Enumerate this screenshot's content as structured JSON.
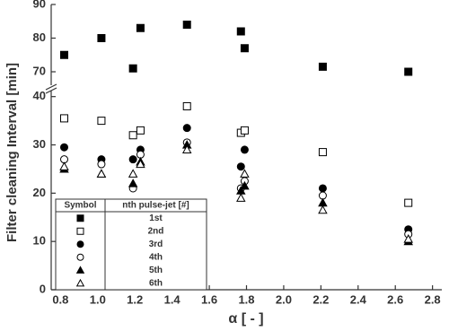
{
  "chart_data": {
    "type": "scatter",
    "x_label": "α [ - ]",
    "y_label": "Filter cleaning Interval [min]",
    "x": [
      0.82,
      1.02,
      1.19,
      1.23,
      1.48,
      1.77,
      1.79,
      2.21,
      2.67
    ],
    "xlim": [
      0.75,
      2.85
    ],
    "xticks": [
      0.8,
      {
        "value": 1.0,
        "label": "1.0"
      },
      1.2,
      1.4,
      1.6,
      1.8,
      {
        "value": 2.0,
        "label": "2.0"
      },
      2.2,
      2.4,
      2.6,
      2.8
    ],
    "y_segments": [
      {
        "ylim": [
          0,
          40.5
        ],
        "yticks": [
          0,
          10,
          20,
          30,
          40
        ]
      },
      {
        "ylim": [
          66,
          90
        ],
        "yticks": [
          70,
          80,
          90
        ]
      }
    ],
    "legend_header": [
      "Symbol",
      "nth pulse-jet [#]"
    ],
    "series": [
      {
        "name": "1st",
        "marker": "square",
        "filled": true,
        "color": "#000000",
        "values": [
          75,
          80,
          71,
          83,
          84,
          82,
          77,
          71.5,
          70
        ]
      },
      {
        "name": "2nd",
        "marker": "square",
        "filled": false,
        "color": "#000000",
        "values": [
          35.5,
          35,
          32,
          33,
          38,
          32.5,
          33,
          28.5,
          18
        ]
      },
      {
        "name": "3rd",
        "marker": "circle",
        "filled": true,
        "color": "#000000",
        "values": [
          29.5,
          27,
          27,
          29,
          33.5,
          25.5,
          29,
          21,
          12.5
        ]
      },
      {
        "name": "4th",
        "marker": "circle",
        "filled": false,
        "color": "#000000",
        "values": [
          27,
          26,
          21,
          28,
          30.5,
          21,
          22.5,
          19.5,
          11.5
        ]
      },
      {
        "name": "5th",
        "marker": "triangle",
        "filled": true,
        "color": "#000000",
        "values": [
          25,
          24,
          22,
          26.5,
          30,
          20.5,
          21.5,
          18,
          10
        ]
      },
      {
        "name": "6th",
        "marker": "triangle",
        "filled": false,
        "color": "#000000",
        "values": [
          25.5,
          24,
          24,
          26,
          29,
          19,
          24,
          16.5,
          10.5
        ]
      }
    ]
  }
}
